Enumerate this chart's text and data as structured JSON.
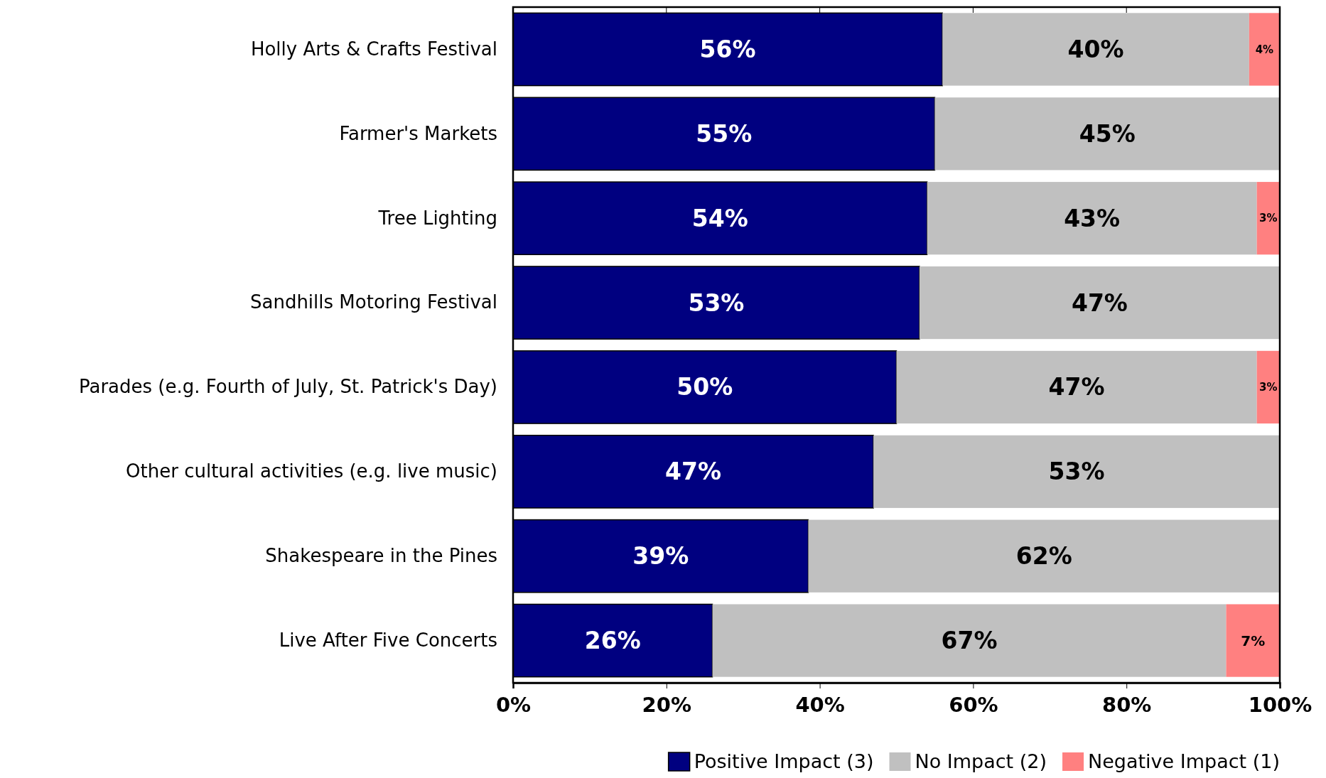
{
  "chart_data": {
    "type": "bar",
    "orientation": "horizontal",
    "stacked": true,
    "categories": [
      "Holly Arts & Crafts Festival",
      "Farmer's Markets",
      "Tree Lighting",
      "Sandhills Motoring Festival",
      "Parades (e.g. Fourth of July, St. Patrick's Day)",
      "Other cultural activities (e.g. live music)",
      "Shakespeare in the Pines",
      "Live After Five Concerts"
    ],
    "series": [
      {
        "name": "Positive Impact (3)",
        "color": "#000080",
        "values": [
          56,
          55,
          54,
          53,
          50,
          47,
          38.5,
          26
        ],
        "value_labels": [
          "56%",
          "55%",
          "54%",
          "53%",
          "50%",
          "47%",
          "39%",
          "26%"
        ]
      },
      {
        "name": "No Impact (2)",
        "color": "#c0c0c0",
        "values": [
          40,
          45,
          43,
          47,
          47,
          53,
          61.5,
          67
        ],
        "value_labels": [
          "40%",
          "45%",
          "43%",
          "47%",
          "47%",
          "53%",
          "62%",
          "67%"
        ]
      },
      {
        "name": "Negative Impact (1)",
        "color": "#ff8080",
        "values": [
          4,
          0,
          3,
          0,
          3,
          0,
          0,
          7
        ],
        "value_labels": [
          "4%",
          null,
          "3%",
          null,
          "3%",
          null,
          null,
          "7%"
        ]
      }
    ],
    "xlim": [
      0,
      100
    ],
    "xticks": [
      {
        "value": 0,
        "label": "0%"
      },
      {
        "value": 20,
        "label": "20%"
      },
      {
        "value": 40,
        "label": "40%"
      },
      {
        "value": 60,
        "label": "60%"
      },
      {
        "value": 80,
        "label": "80%"
      },
      {
        "value": 100,
        "label": "100%"
      }
    ],
    "grid": false,
    "legend": "bottom right"
  }
}
